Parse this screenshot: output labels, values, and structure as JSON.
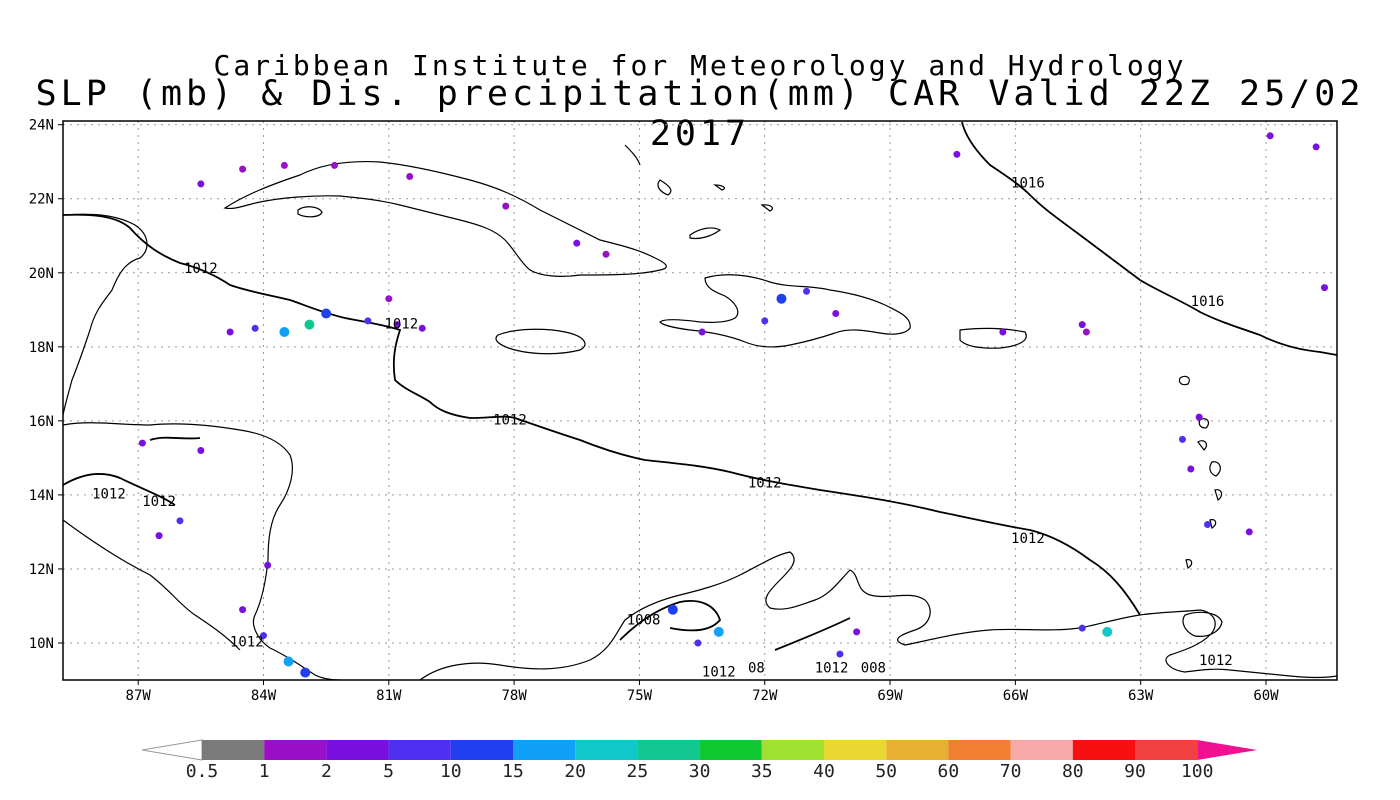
{
  "header": {
    "institute": "Caribbean Institute for Meteorology and Hydrology",
    "product": "SLP (mb) & Dis. precipitation(mm) CAR Valid 22Z 25/02 2017"
  },
  "axes": {
    "lat_labels": [
      "24N",
      "22N",
      "20N",
      "18N",
      "16N",
      "14N",
      "12N",
      "10N"
    ],
    "lat_values": [
      24,
      22,
      20,
      18,
      16,
      14,
      12,
      10
    ],
    "lon_labels": [
      "87W",
      "84W",
      "81W",
      "78W",
      "75W",
      "72W",
      "69W",
      "66W",
      "63W",
      "60W"
    ],
    "lon_values": [
      -87,
      -84,
      -81,
      -78,
      -75,
      -72,
      -69,
      -66,
      -63,
      -60
    ],
    "lat_range": [
      9,
      24.1
    ],
    "lon_range": [
      -88.8,
      -58.3
    ],
    "grid": "dotted"
  },
  "contours": {
    "labels": [
      {
        "text": "1016",
        "lon": -65.7,
        "lat": 22.3
      },
      {
        "text": "1016",
        "lon": -61.4,
        "lat": 19.1
      },
      {
        "text": "1012",
        "lon": -85.5,
        "lat": 20.0
      },
      {
        "text": "1012",
        "lon": -80.7,
        "lat": 18.5
      },
      {
        "text": "1012",
        "lon": -78.1,
        "lat": 15.9
      },
      {
        "text": "1012",
        "lon": -72.0,
        "lat": 14.2
      },
      {
        "text": "1012",
        "lon": -65.7,
        "lat": 12.7
      },
      {
        "text": "1012",
        "lon": -87.7,
        "lat": 13.9
      },
      {
        "text": "1012",
        "lon": -86.5,
        "lat": 13.7
      },
      {
        "text": "1012",
        "lon": -84.4,
        "lat": 9.9
      },
      {
        "text": "1008",
        "lon": -74.9,
        "lat": 10.5
      },
      {
        "text": "1012",
        "lon": -73.1,
        "lat": 9.1
      },
      {
        "text": "08",
        "lon": -72.2,
        "lat": 9.2
      },
      {
        "text": "1012",
        "lon": -70.4,
        "lat": 9.2
      },
      {
        "text": "008",
        "lon": -69.4,
        "lat": 9.2
      },
      {
        "text": "1012",
        "lon": -61.2,
        "lat": 9.4
      }
    ]
  },
  "colorbar": {
    "labels": [
      "0.5",
      "1",
      "2",
      "5",
      "10",
      "15",
      "20",
      "25",
      "30",
      "35",
      "40",
      "50",
      "60",
      "70",
      "80",
      "90",
      "100"
    ],
    "colors": [
      "#7a7a7a",
      "#9a10c8",
      "#7a10e0",
      "#5030f0",
      "#2040f0",
      "#10a0f8",
      "#10c8c8",
      "#10c890",
      "#10c830",
      "#a0e030",
      "#e8d830",
      "#e8b030",
      "#f08030",
      "#f8a8a8",
      "#f81010",
      "#f04040"
    ],
    "under_color": "#ffffff",
    "over_color": "#f01090"
  },
  "precip_cells": [
    {
      "lon": -84.8,
      "lat": 18.4,
      "mm": 2
    },
    {
      "lon": -84.2,
      "lat": 18.5,
      "mm": 5
    },
    {
      "lon": -83.5,
      "lat": 18.4,
      "mm": 15
    },
    {
      "lon": -82.9,
      "lat": 18.6,
      "mm": 25
    },
    {
      "lon": -82.5,
      "lat": 18.9,
      "mm": 10
    },
    {
      "lon": -81.5,
      "lat": 18.7,
      "mm": 5
    },
    {
      "lon": -80.8,
      "lat": 18.6,
      "mm": 2
    },
    {
      "lon": -80.2,
      "lat": 18.5,
      "mm": 2
    },
    {
      "lon": -81.0,
      "lat": 19.3,
      "mm": 1
    },
    {
      "lon": -85.5,
      "lat": 22.4,
      "mm": 2
    },
    {
      "lon": -84.5,
      "lat": 22.8,
      "mm": 1
    },
    {
      "lon": -83.5,
      "lat": 22.9,
      "mm": 1
    },
    {
      "lon": -82.3,
      "lat": 22.9,
      "mm": 1
    },
    {
      "lon": -80.5,
      "lat": 22.6,
      "mm": 1
    },
    {
      "lon": -78.2,
      "lat": 21.8,
      "mm": 1
    },
    {
      "lon": -76.5,
      "lat": 20.8,
      "mm": 2
    },
    {
      "lon": -75.8,
      "lat": 20.5,
      "mm": 1
    },
    {
      "lon": -71.6,
      "lat": 19.3,
      "mm": 10
    },
    {
      "lon": -71.0,
      "lat": 19.5,
      "mm": 5
    },
    {
      "lon": -72.0,
      "lat": 18.7,
      "mm": 5
    },
    {
      "lon": -70.3,
      "lat": 18.9,
      "mm": 2
    },
    {
      "lon": -73.5,
      "lat": 18.4,
      "mm": 2
    },
    {
      "lon": -66.3,
      "lat": 18.4,
      "mm": 2
    },
    {
      "lon": -64.3,
      "lat": 18.4,
      "mm": 1
    },
    {
      "lon": -62.0,
      "lat": 15.5,
      "mm": 5
    },
    {
      "lon": -61.6,
      "lat": 16.1,
      "mm": 2
    },
    {
      "lon": -61.8,
      "lat": 14.7,
      "mm": 2
    },
    {
      "lon": -60.4,
      "lat": 13.0,
      "mm": 2
    },
    {
      "lon": -61.4,
      "lat": 13.2,
      "mm": 5
    },
    {
      "lon": -74.2,
      "lat": 10.9,
      "mm": 10
    },
    {
      "lon": -73.1,
      "lat": 10.3,
      "mm": 15
    },
    {
      "lon": -73.6,
      "lat": 10.0,
      "mm": 5
    },
    {
      "lon": -70.2,
      "lat": 9.7,
      "mm": 5
    },
    {
      "lon": -69.8,
      "lat": 10.3,
      "mm": 2
    },
    {
      "lon": -63.8,
      "lat": 10.3,
      "mm": 20
    },
    {
      "lon": -64.4,
      "lat": 10.4,
      "mm": 5
    },
    {
      "lon": -83.4,
      "lat": 9.5,
      "mm": 15
    },
    {
      "lon": -83.0,
      "lat": 9.2,
      "mm": 10
    },
    {
      "lon": -84.0,
      "lat": 10.2,
      "mm": 5
    },
    {
      "lon": -84.5,
      "lat": 10.9,
      "mm": 2
    },
    {
      "lon": -86.9,
      "lat": 15.4,
      "mm": 2
    },
    {
      "lon": -85.5,
      "lat": 15.2,
      "mm": 2
    },
    {
      "lon": -86.0,
      "lat": 13.3,
      "mm": 5
    },
    {
      "lon": -86.5,
      "lat": 12.9,
      "mm": 2
    },
    {
      "lon": -83.9,
      "lat": 12.1,
      "mm": 2
    },
    {
      "lon": -59.9,
      "lat": 23.7,
      "mm": 2
    },
    {
      "lon": -58.8,
      "lat": 23.4,
      "mm": 2
    },
    {
      "lon": -58.6,
      "lat": 19.6,
      "mm": 2
    },
    {
      "lon": -67.4,
      "lat": 23.2,
      "mm": 2
    },
    {
      "lon": -64.4,
      "lat": 18.6,
      "mm": 2
    }
  ]
}
